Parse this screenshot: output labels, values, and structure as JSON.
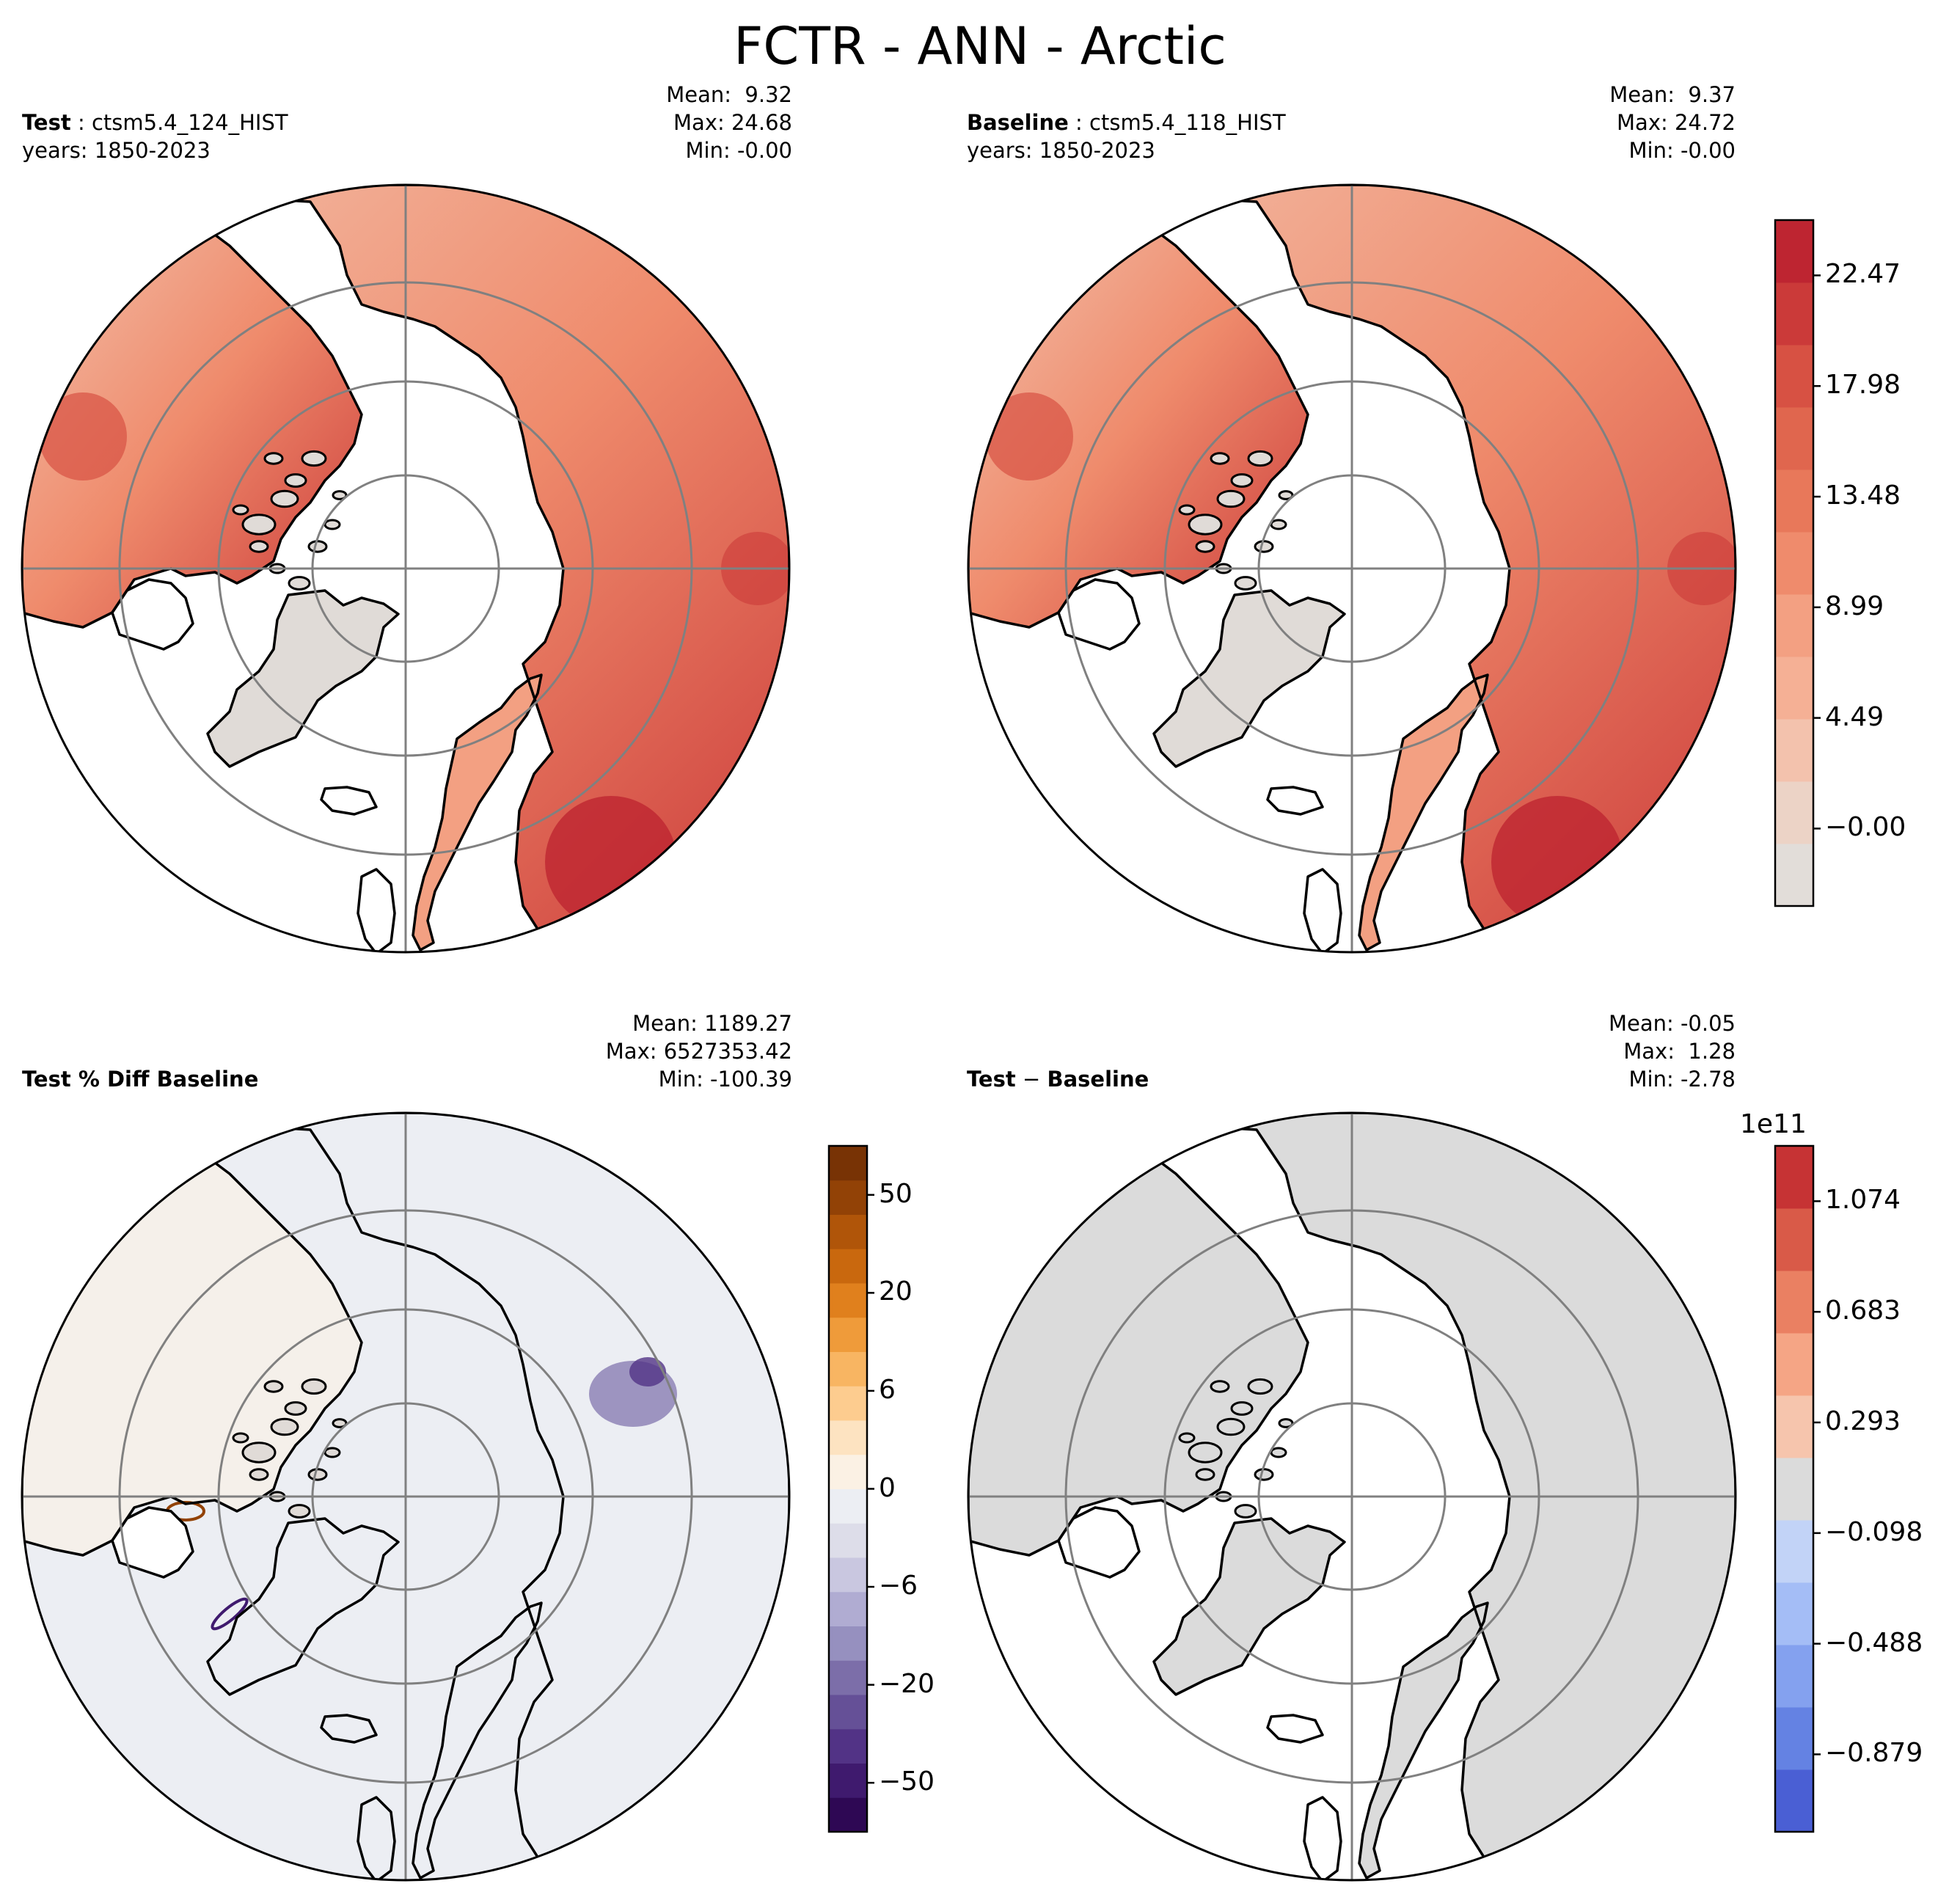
{
  "title": "FCTR - ANN - Arctic",
  "panels": [
    {
      "name": "test",
      "label_bold": "Test",
      "label_sep": " : ",
      "label_rest": "ctsm5.4_124_HIST",
      "years": "years: 1850-2023",
      "mean": "Mean:  9.32",
      "max": "Max: 24.68",
      "min": "Min: -0.00"
    },
    {
      "name": "baseline",
      "label_bold": "Baseline",
      "label_sep": " : ",
      "label_rest": "ctsm5.4_118_HIST",
      "years": "years: 1850-2023",
      "mean": "Mean:  9.37",
      "max": "Max: 24.72",
      "min": "Min: -0.00"
    },
    {
      "name": "pct-diff",
      "label_bold": "Test % Diff Baseline",
      "mean": "Mean: 1189.27",
      "max": "Max: 6527353.42",
      "min": "Min: -100.39"
    },
    {
      "name": "diff",
      "label_bold": "Test",
      "label_sep": " − ",
      "label_rest": "Baseline",
      "mean": "Mean: -0.05",
      "max": "Max:  1.28",
      "min": "Min: -2.78"
    }
  ],
  "colorbars": {
    "main": {
      "ticks": [
        "22.47",
        "17.98",
        "13.48",
        "8.99",
        "4.49",
        "−0.00"
      ],
      "colors": [
        "#e2ddd9",
        "#ecd3c6",
        "#f3c2ad",
        "#f5b095",
        "#f3a082",
        "#ef8b6c",
        "#e8785a",
        "#e0664e",
        "#d75143",
        "#cb3a39",
        "#be2531"
      ]
    },
    "pct": {
      "ticks": [
        "50",
        "20",
        "6",
        "0",
        "−6",
        "−20",
        "−50"
      ],
      "colors": [
        "#2e0854",
        "#3f1a6e",
        "#523386",
        "#655097",
        "#7c6ea9",
        "#9690bf",
        "#b0acd2",
        "#c9c7e0",
        "#dddde9",
        "#eceef3",
        "#fbf1e4",
        "#fde3c1",
        "#fdcc8f",
        "#f8b562",
        "#ef9b3a",
        "#e0801d",
        "#c9680e",
        "#b05509",
        "#924206",
        "#783305"
      ]
    },
    "diff": {
      "exponent": "1e11",
      "ticks": [
        "1.074",
        "0.683",
        "0.293",
        "−0.098",
        "−0.488",
        "−0.879"
      ],
      "colors": [
        "#4a5fd4",
        "#6482e3",
        "#84a1ef",
        "#a4bdf6",
        "#c2d3f7",
        "#dbdbdb",
        "#f6c5ad",
        "#f5a585",
        "#ea8062",
        "#d95a48",
        "#c63334"
      ]
    }
  },
  "styles": {
    "land_gray": "#e0dbd7",
    "diff_gray": "#dbdbdb",
    "pct_bg": "#eceef3",
    "grid_color": "#808080"
  }
}
